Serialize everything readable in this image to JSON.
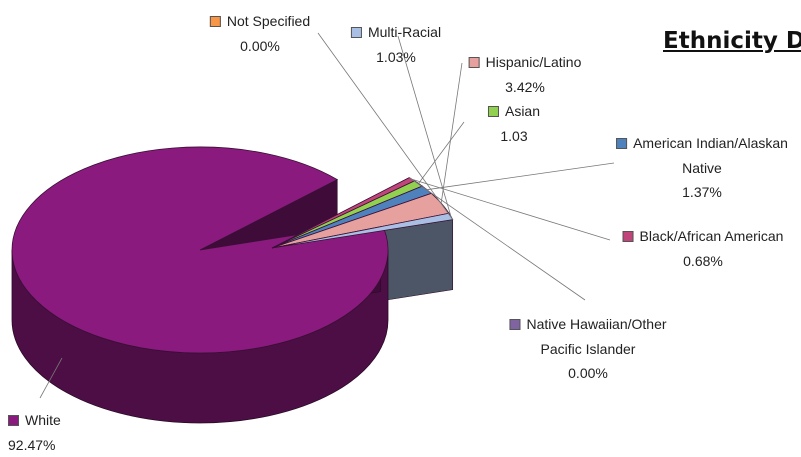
{
  "chart_data": {
    "type": "pie",
    "title": "Ethnicity D",
    "slices": [
      {
        "name": "White",
        "label": "White",
        "value_label": "92.47%",
        "value": 92.47,
        "color": "#8b1a7e"
      },
      {
        "name": "Native Hawaiian/Other Pacific Islander",
        "label_lines": [
          "Native Hawaiian/Other",
          "Pacific Islander"
        ],
        "value_label": "0.00%",
        "value": 0.0,
        "color": "#8064a2"
      },
      {
        "name": "Black/African American",
        "label": "Black/African American",
        "value_label": "0.68%",
        "value": 0.68,
        "color": "#c0457a"
      },
      {
        "name": "Asian",
        "label": "Asian",
        "value_label": "1.03",
        "value": 1.03,
        "color": "#92d050"
      },
      {
        "name": "American Indian/Alaskan Native",
        "label_lines": [
          "American Indian/Alaskan",
          "Native"
        ],
        "value_label": "1.37%",
        "value": 1.37,
        "color": "#4f81bd"
      },
      {
        "name": "Hispanic/Latino",
        "label": "Hispanic/Latino",
        "value_label": "3.42%",
        "value": 3.42,
        "color": "#e6a09e"
      },
      {
        "name": "Multi-Racial",
        "label": "Multi-Racial",
        "value_label": "1.03%",
        "value": 1.03,
        "color": "#a9c0e4"
      },
      {
        "name": "Not Specified",
        "label": "Not Specified",
        "value_label": "0.00%",
        "value": 0.0,
        "color": "#f79646"
      }
    ],
    "legend": "labels-with-leader-lines",
    "style": "3d-exploded"
  }
}
